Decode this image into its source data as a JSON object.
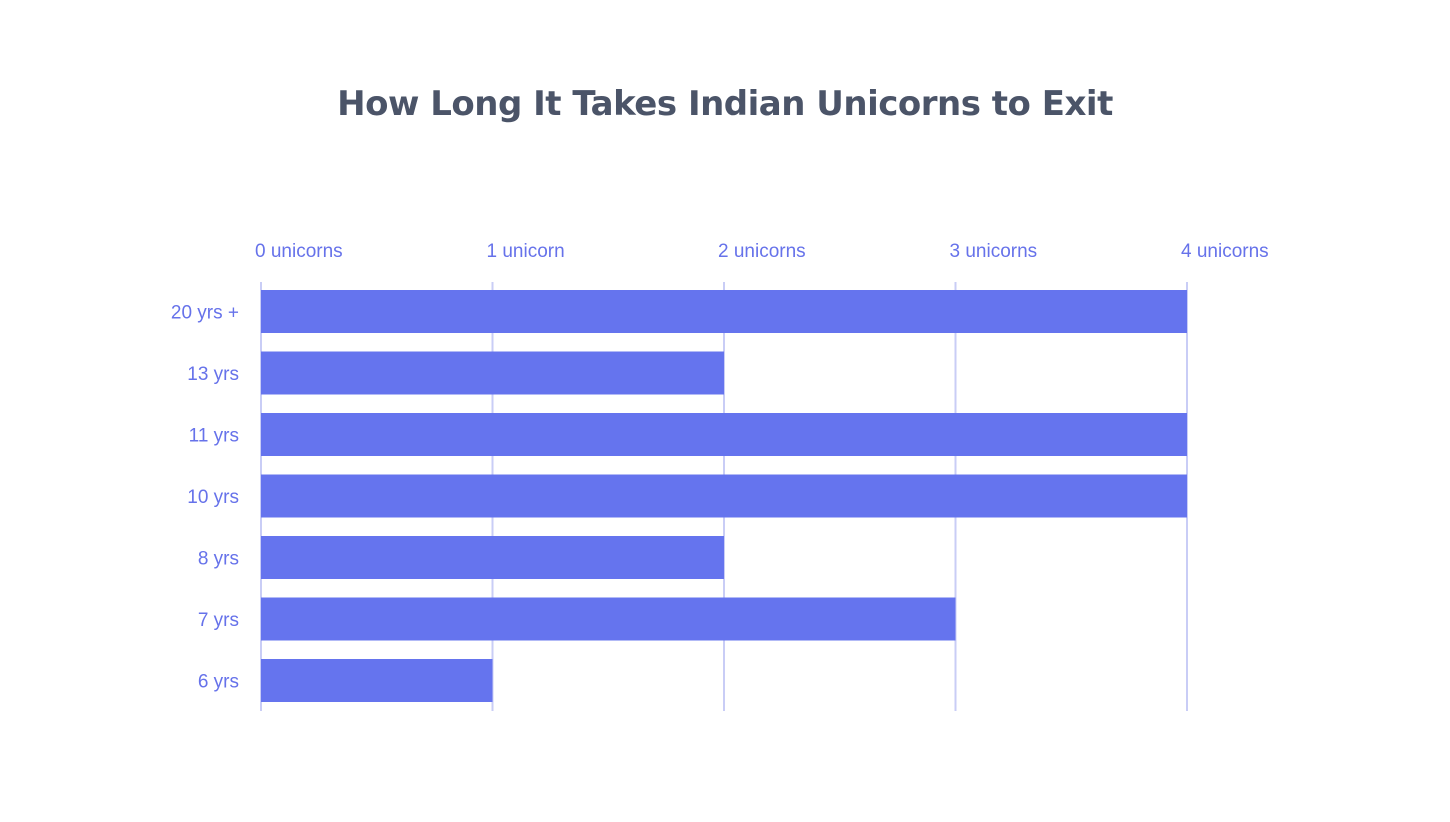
{
  "chart_data": {
    "type": "bar",
    "orientation": "horizontal",
    "title": "How Long It Takes Indian Unicorns to Exit",
    "categories": [
      "20 yrs +",
      "13 yrs",
      "11 yrs",
      "10 yrs",
      "8 yrs",
      "7 yrs",
      "6 yrs"
    ],
    "values": [
      4,
      2,
      4,
      4,
      2,
      3,
      1
    ],
    "x_ticks": [
      0,
      1,
      2,
      3,
      4
    ],
    "x_tick_labels": [
      "0  unicorns",
      "1  unicorn",
      "2 unicorns",
      "3 unicorns",
      "4  unicorns"
    ],
    "xlim": [
      0,
      4
    ],
    "xlabel": "",
    "ylabel": "",
    "axis_position": "top",
    "grid": true,
    "colors": {
      "bar": "#6574ee",
      "grid": "#c9cdf6",
      "label": "#6672ea",
      "title": "#4b5468"
    }
  }
}
